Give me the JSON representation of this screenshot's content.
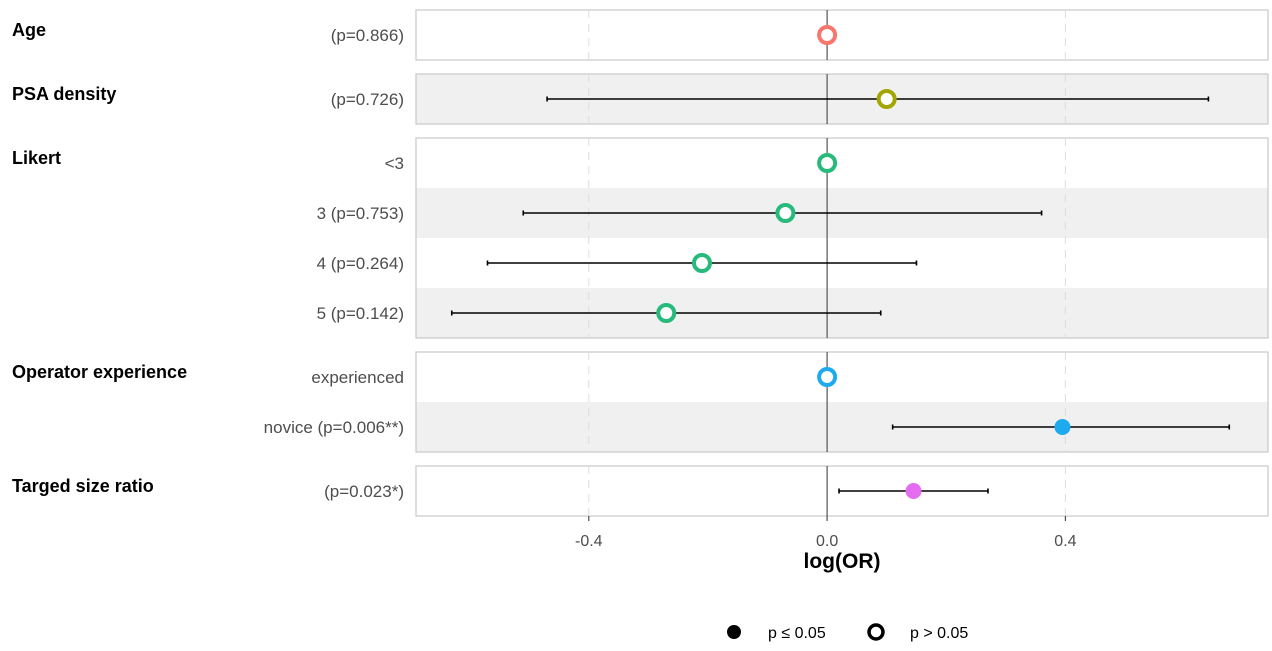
{
  "chart_data": {
    "type": "scatter",
    "subtype": "forest-plot",
    "title": "",
    "xlabel": "log(OR)",
    "ylabel": "",
    "xlim": [
      -0.69,
      0.74
    ],
    "x_ticks": [
      -0.4,
      0.0,
      0.4
    ],
    "x_tick_labels": [
      "-0.4",
      "0.0",
      "0.4"
    ],
    "reference_line": 0.0,
    "grid": "vertical-dashed",
    "legend_position": "bottom",
    "groups": [
      {
        "name": "Age",
        "color": "#F8766D",
        "rows": [
          {
            "label": "(p=0.866)",
            "estimate": 0.0,
            "ci_low": null,
            "ci_high": null,
            "significant": false
          }
        ]
      },
      {
        "name": "PSA density",
        "color": "#A3A500",
        "rows": [
          {
            "label": "(p=0.726)",
            "estimate": 0.1,
            "ci_low": -0.47,
            "ci_high": 0.64,
            "significant": false
          }
        ]
      },
      {
        "name": "Likert",
        "color": "#27BA7A",
        "rows": [
          {
            "label": "<3",
            "estimate": 0.0,
            "ci_low": null,
            "ci_high": null,
            "significant": false
          },
          {
            "label": "3 (p=0.753)",
            "estimate": -0.07,
            "ci_low": -0.51,
            "ci_high": 0.36,
            "significant": false
          },
          {
            "label": "4 (p=0.264)",
            "estimate": -0.21,
            "ci_low": -0.57,
            "ci_high": 0.15,
            "significant": false
          },
          {
            "label": "5 (p=0.142)",
            "estimate": -0.27,
            "ci_low": -0.63,
            "ci_high": 0.09,
            "significant": false
          }
        ]
      },
      {
        "name": "Operator experience",
        "color": "#1EAAEE",
        "rows": [
          {
            "label": "experienced",
            "estimate": 0.0,
            "ci_low": null,
            "ci_high": null,
            "significant": false
          },
          {
            "label": "novice (p=0.006**)",
            "estimate": 0.395,
            "ci_low": 0.11,
            "ci_high": 0.675,
            "significant": true
          }
        ]
      },
      {
        "name": "Targed size ratio",
        "color": "#E36CEF",
        "rows": [
          {
            "label": "(p=0.023*)",
            "estimate": 0.145,
            "ci_low": 0.02,
            "ci_high": 0.27,
            "significant": true
          }
        ]
      }
    ],
    "legend": [
      {
        "label": "p ≤ 0.05",
        "marker": "filled-circle"
      },
      {
        "label": "p > 0.05",
        "marker": "hollow-circle"
      }
    ]
  }
}
